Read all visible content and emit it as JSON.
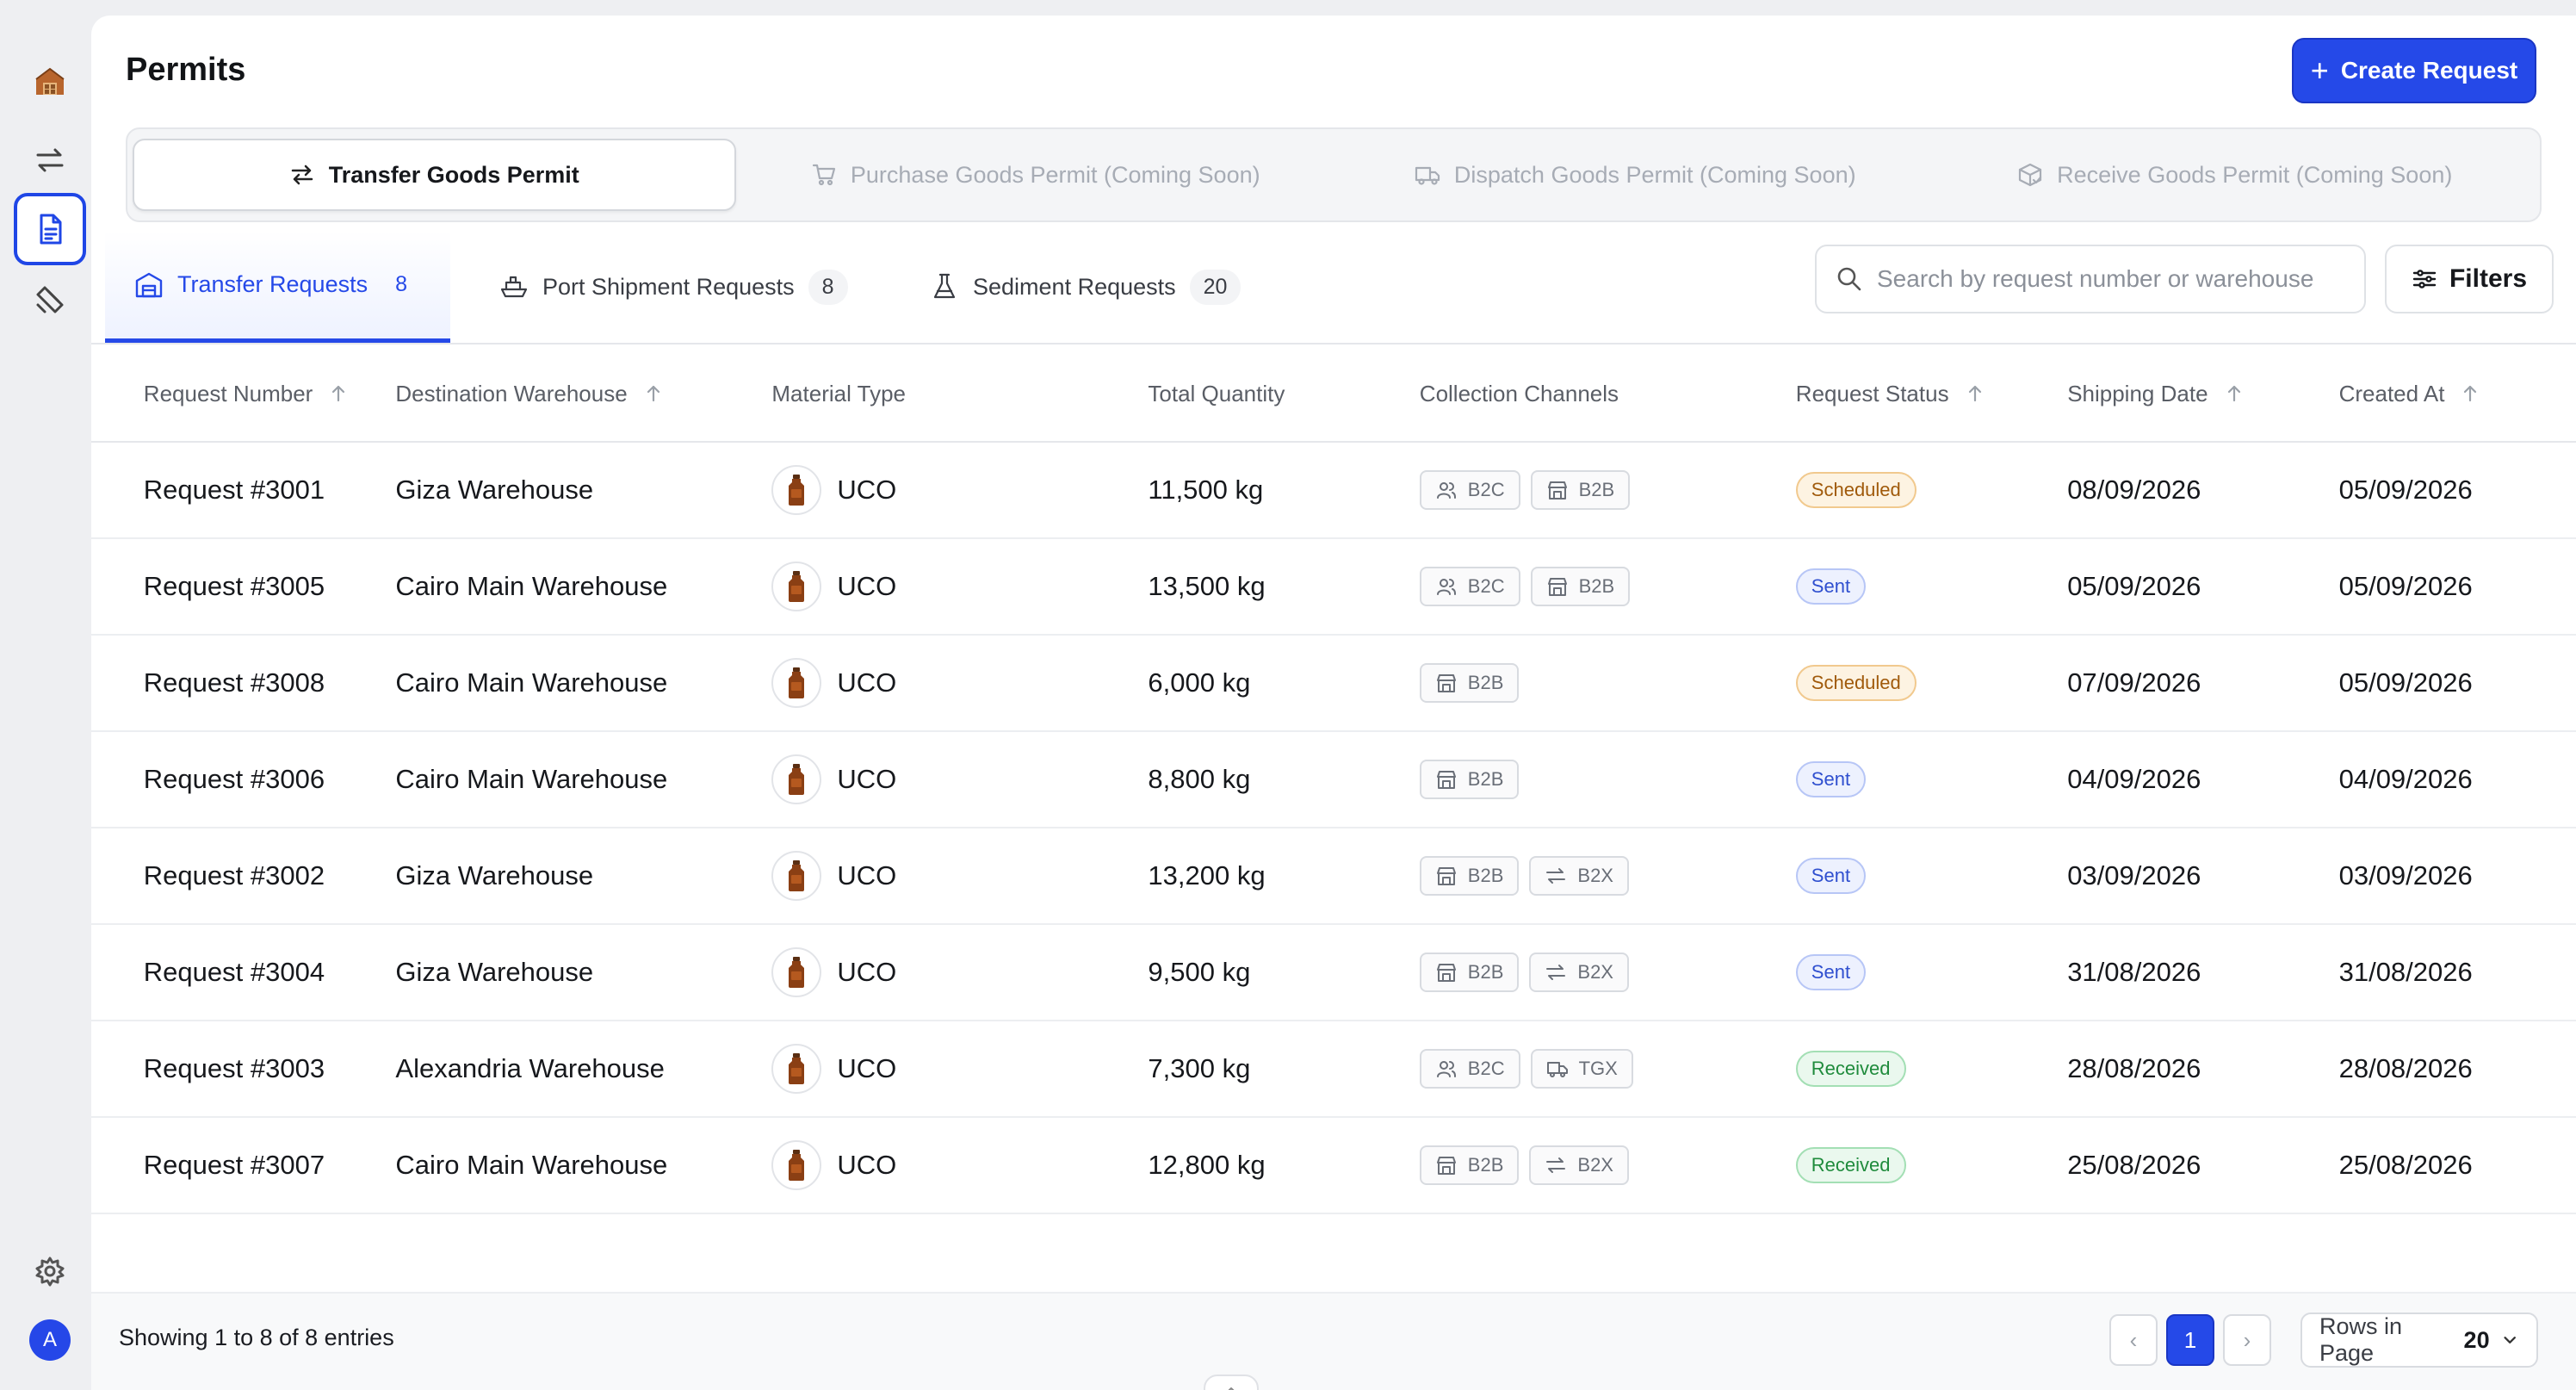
{
  "page": {
    "title": "Permits",
    "create_label": "Create Request"
  },
  "permit_tabs": [
    {
      "label": "Transfer Goods Permit",
      "icon": "arrows-exchange-icon",
      "active": true
    },
    {
      "label": "Purchase Goods Permit (Coming Soon)",
      "icon": "cart-icon",
      "active": false
    },
    {
      "label": "Dispatch Goods Permit (Coming Soon)",
      "icon": "truck-icon",
      "active": false
    },
    {
      "label": "Receive Goods Permit (Coming Soon)",
      "icon": "box-check-icon",
      "active": false
    }
  ],
  "request_tabs": [
    {
      "label": "Transfer Requests",
      "count": "8",
      "icon": "warehouse-icon",
      "active": true
    },
    {
      "label": "Port Shipment Requests",
      "count": "8",
      "icon": "ship-icon",
      "active": false
    },
    {
      "label": "Sediment Requests",
      "count": "20",
      "icon": "flask-icon",
      "active": false
    }
  ],
  "search": {
    "placeholder": "Search by request number or warehouse"
  },
  "filters_label": "Filters",
  "table": {
    "headers": [
      "Request Number",
      "Destination Warehouse",
      "Material Type",
      "Total Quantity",
      "Collection Channels",
      "Request Status",
      "Shipping Date",
      "Created At"
    ],
    "rows": [
      {
        "number": "Request #3001",
        "warehouse": "Giza Warehouse",
        "material": "UCO",
        "quantity": "11,500 kg",
        "channels": [
          "B2C",
          "B2B"
        ],
        "status": "Scheduled",
        "shipping": "08/09/2026",
        "created": "05/09/2026"
      },
      {
        "number": "Request #3005",
        "warehouse": "Cairo Main Warehouse",
        "material": "UCO",
        "quantity": "13,500 kg",
        "channels": [
          "B2C",
          "B2B"
        ],
        "status": "Sent",
        "shipping": "05/09/2026",
        "created": "05/09/2026"
      },
      {
        "number": "Request #3008",
        "warehouse": "Cairo Main Warehouse",
        "material": "UCO",
        "quantity": "6,000 kg",
        "channels": [
          "B2B"
        ],
        "status": "Scheduled",
        "shipping": "07/09/2026",
        "created": "05/09/2026"
      },
      {
        "number": "Request #3006",
        "warehouse": "Cairo Main Warehouse",
        "material": "UCO",
        "quantity": "8,800 kg",
        "channels": [
          "B2B"
        ],
        "status": "Sent",
        "shipping": "04/09/2026",
        "created": "04/09/2026"
      },
      {
        "number": "Request #3002",
        "warehouse": "Giza Warehouse",
        "material": "UCO",
        "quantity": "13,200 kg",
        "channels": [
          "B2B",
          "B2X"
        ],
        "status": "Sent",
        "shipping": "03/09/2026",
        "created": "03/09/2026"
      },
      {
        "number": "Request #3004",
        "warehouse": "Giza Warehouse",
        "material": "UCO",
        "quantity": "9,500 kg",
        "channels": [
          "B2B",
          "B2X"
        ],
        "status": "Sent",
        "shipping": "31/08/2026",
        "created": "31/08/2026"
      },
      {
        "number": "Request #3003",
        "warehouse": "Alexandria Warehouse",
        "material": "UCO",
        "quantity": "7,300 kg",
        "channels": [
          "B2C",
          "TGX"
        ],
        "status": "Received",
        "shipping": "28/08/2026",
        "created": "28/08/2026"
      },
      {
        "number": "Request #3007",
        "warehouse": "Cairo Main Warehouse",
        "material": "UCO",
        "quantity": "12,800 kg",
        "channels": [
          "B2B",
          "B2X"
        ],
        "status": "Received",
        "shipping": "25/08/2026",
        "created": "25/08/2026"
      }
    ]
  },
  "footer": {
    "showing": "Showing 1 to 8 of 8 entries",
    "prev": "‹",
    "next": "›",
    "current_page": "1",
    "rows_label": "Rows in Page",
    "rows_value": "20"
  },
  "user": {
    "avatar_initial": "A"
  },
  "colors": {
    "accent": "#2549e8",
    "scheduled": "#a05a0b",
    "sent": "#2f4fcf",
    "received": "#1f8b3c"
  }
}
